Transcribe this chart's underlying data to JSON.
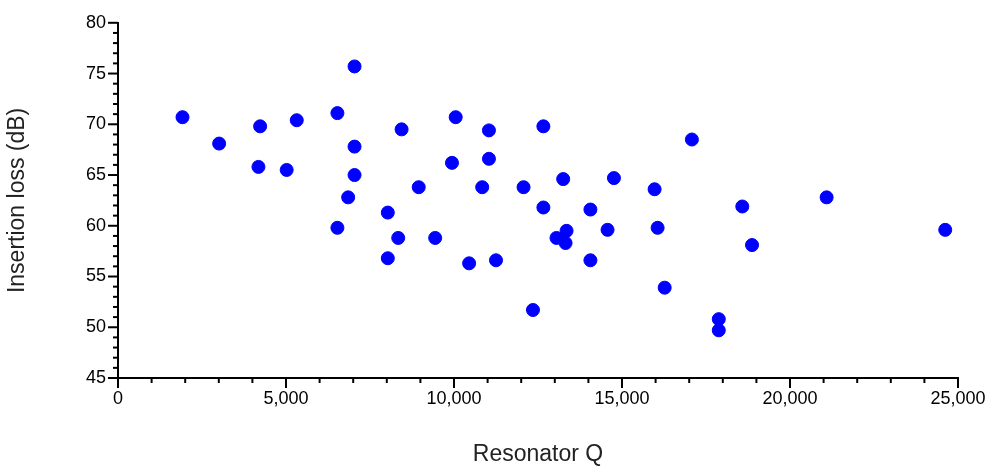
{
  "chart_data": {
    "type": "scatter",
    "xlabel": "Resonator Q",
    "ylabel": "Insertion loss (dB)",
    "grid": false,
    "legend": false,
    "marker": "circle",
    "xlim": [
      0,
      25000
    ],
    "xticks": [
      0,
      {
        "value": 1000,
        "label": null
      },
      {
        "value": 2000,
        "label": null
      },
      {
        "value": 3000,
        "label": null
      },
      {
        "value": 4000,
        "label": null
      },
      {
        "value": 5000,
        "label": "5,000"
      },
      {
        "value": 6000,
        "label": null
      },
      {
        "value": 7000,
        "label": null
      },
      {
        "value": 8000,
        "label": null
      },
      {
        "value": 9000,
        "label": null
      },
      {
        "value": 10000,
        "label": "10,000"
      },
      {
        "value": 11000,
        "label": null
      },
      {
        "value": 12000,
        "label": null
      },
      {
        "value": 13000,
        "label": null
      },
      {
        "value": 14000,
        "label": null
      },
      {
        "value": 15000,
        "label": "15,000"
      },
      {
        "value": 16000,
        "label": null
      },
      {
        "value": 17000,
        "label": null
      },
      {
        "value": 18000,
        "label": null
      },
      {
        "value": 19000,
        "label": null
      },
      {
        "value": 20000,
        "label": "20,000"
      },
      {
        "value": 21000,
        "label": null
      },
      {
        "value": 22000,
        "label": null
      },
      {
        "value": 23000,
        "label": null
      },
      {
        "value": 24000,
        "label": null
      },
      {
        "value": 25000,
        "label": "25,000"
      }
    ],
    "ylim": [
      45,
      80
    ],
    "yticks": [
      45,
      {
        "value": 46,
        "label": null
      },
      {
        "value": 47,
        "label": null
      },
      {
        "value": 48,
        "label": null
      },
      {
        "value": 49,
        "label": null
      },
      50,
      {
        "value": 51,
        "label": null
      },
      {
        "value": 52,
        "label": null
      },
      {
        "value": 53,
        "label": null
      },
      {
        "value": 54,
        "label": null
      },
      55,
      {
        "value": 56,
        "label": null
      },
      {
        "value": 57,
        "label": null
      },
      {
        "value": 58,
        "label": null
      },
      {
        "value": 59,
        "label": null
      },
      60,
      {
        "value": 61,
        "label": null
      },
      {
        "value": 62,
        "label": null
      },
      {
        "value": 63,
        "label": null
      },
      {
        "value": 64,
        "label": null
      },
      65,
      {
        "value": 66,
        "label": null
      },
      {
        "value": 67,
        "label": null
      },
      {
        "value": 68,
        "label": null
      },
      {
        "value": 69,
        "label": null
      },
      70,
      {
        "value": 71,
        "label": null
      },
      {
        "value": 72,
        "label": null
      },
      {
        "value": 73,
        "label": null
      },
      {
        "value": 74,
        "label": null
      },
      75,
      {
        "value": 76,
        "label": null
      },
      {
        "value": 77,
        "label": null
      },
      {
        "value": 78,
        "label": null
      },
      {
        "value": 79,
        "label": null
      },
      80
    ],
    "x": [
      1920,
      3010,
      4230,
      4180,
      5020,
      5320,
      6530,
      7040,
      7040,
      7040,
      6850,
      6530,
      8030,
      8340,
      8030,
      8440,
      8950,
      9440,
      10050,
      9940,
      11040,
      11040,
      10840,
      10450,
      11250,
      12660,
      12070,
      12660,
      12350,
      13250,
      13050,
      13350,
      13320,
      14060,
      14060,
      14570,
      14760,
      15970,
      16060,
      16270,
      17080,
      18580,
      18870,
      21090,
      24620,
      17880,
      17880
    ],
    "series": [
      {
        "color": "#0000ff",
        "values": [
          70.7,
          68.1,
          69.8,
          65.8,
          65.5,
          70.4,
          71.1,
          75.7,
          67.8,
          65.0,
          62.8,
          59.8,
          61.3,
          58.8,
          56.8,
          69.5,
          63.8,
          58.8,
          70.7,
          66.2,
          69.4,
          66.6,
          63.8,
          56.3,
          56.6,
          69.8,
          63.8,
          61.8,
          51.7,
          64.6,
          58.8,
          59.5,
          58.3,
          61.6,
          56.6,
          59.6,
          64.7,
          63.6,
          59.8,
          53.9,
          68.5,
          61.9,
          58.1,
          62.8,
          59.6,
          50.8,
          49.7
        ]
      }
    ]
  }
}
